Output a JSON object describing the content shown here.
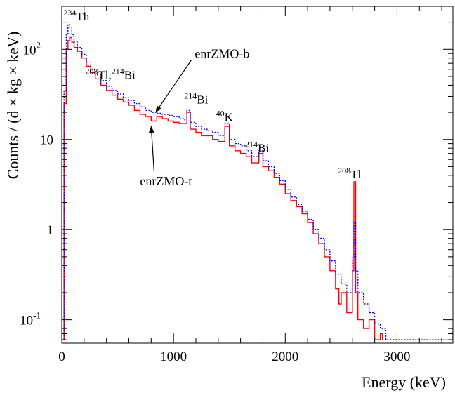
{
  "chart_data": {
    "type": "line",
    "title": "",
    "xlabel": "Energy (keV)",
    "ylabel": "Counts / (d × kg × keV)",
    "xlim": [
      0,
      3500
    ],
    "ylim": [
      0.055,
      300
    ],
    "y_scale": "log",
    "grid": false,
    "x_ticks": [
      {
        "value": 0,
        "label": "0"
      },
      {
        "value": 1000,
        "label": "1000"
      },
      {
        "value": 2000,
        "label": "2000"
      },
      {
        "value": 3000,
        "label": "3000"
      }
    ],
    "y_ticks": [
      {
        "value": 0.1,
        "label": "10",
        "exp": "-1"
      },
      {
        "value": 1,
        "label": "1",
        "exp": ""
      },
      {
        "value": 10,
        "label": "10",
        "exp": ""
      },
      {
        "value": 100,
        "label": "10",
        "exp": "2"
      }
    ],
    "series": [
      {
        "name": "enrZMO-t",
        "color": "#ff0000",
        "style": "solid",
        "x": [
          0,
          20,
          40,
          55,
          70,
          90,
          110,
          140,
          180,
          220,
          260,
          300,
          350,
          400,
          450,
          500,
          550,
          600,
          650,
          700,
          750,
          800,
          850,
          900,
          950,
          1000,
          1050,
          1100,
          1120,
          1150,
          1200,
          1250,
          1300,
          1350,
          1400,
          1460,
          1500,
          1550,
          1600,
          1650,
          1700,
          1764,
          1800,
          1850,
          1900,
          1950,
          2000,
          2050,
          2100,
          2150,
          2200,
          2250,
          2300,
          2350,
          2400,
          2450,
          2480,
          2500,
          2550,
          2600,
          2614,
          2630,
          2650,
          2700,
          2750,
          2800,
          2850,
          2870
        ],
        "values": [
          0.06,
          25,
          100,
          125,
          135,
          120,
          105,
          95,
          80,
          65,
          55,
          47,
          40,
          35,
          31,
          28,
          26,
          24,
          21,
          19,
          18,
          16,
          18,
          17,
          16,
          15.5,
          15,
          15,
          20,
          13,
          12,
          11,
          11,
          10,
          9.5,
          14,
          8.5,
          7.5,
          7,
          6.5,
          5.5,
          7,
          5,
          4.5,
          3.8,
          3.2,
          2.5,
          2.1,
          1.8,
          1.5,
          1.2,
          0.9,
          0.7,
          0.5,
          0.35,
          0.22,
          0.15,
          0.2,
          0.12,
          0.35,
          3.4,
          0.2,
          0.1,
          0.08,
          0.1,
          0.06,
          0.07,
          0.06
        ]
      },
      {
        "name": "enrZMO-b",
        "color": "#0000ff",
        "style": "dotted",
        "x": [
          0,
          20,
          40,
          55,
          70,
          90,
          110,
          140,
          180,
          220,
          260,
          300,
          350,
          400,
          450,
          500,
          550,
          600,
          650,
          700,
          750,
          800,
          850,
          900,
          950,
          1000,
          1050,
          1100,
          1120,
          1150,
          1200,
          1250,
          1300,
          1350,
          1400,
          1460,
          1500,
          1550,
          1600,
          1650,
          1700,
          1764,
          1800,
          1850,
          1900,
          1950,
          2000,
          2050,
          2100,
          2150,
          2200,
          2250,
          2300,
          2350,
          2400,
          2450,
          2500,
          2550,
          2600,
          2614,
          2630,
          2650,
          2700,
          2750,
          2800,
          2850,
          2900,
          3450,
          3500
        ],
        "values": [
          0.06,
          35,
          150,
          190,
          175,
          145,
          120,
          105,
          88,
          72,
          60,
          52,
          45,
          39,
          35,
          32,
          29,
          27,
          25,
          23,
          21,
          20,
          19.5,
          19,
          18.5,
          18,
          17,
          16.5,
          21,
          15.5,
          14,
          13,
          12.5,
          12,
          11,
          15,
          10,
          9,
          8.5,
          7.5,
          6.5,
          7.5,
          5.8,
          5,
          4.2,
          3.5,
          2.8,
          2.3,
          1.9,
          1.6,
          1.3,
          1.0,
          0.8,
          0.6,
          0.45,
          0.32,
          0.25,
          0.2,
          0.5,
          1.2,
          0.35,
          0.2,
          0.15,
          0.12,
          0.09,
          0.08,
          0.06,
          0.06,
          0.09
        ]
      }
    ],
    "annotations": [
      {
        "text": "Th",
        "sup": "234",
        "x": 15,
        "y": 210
      },
      {
        "text": "Tl,",
        "sup": "208",
        "text2": "Bi",
        "sup2": "214",
        "x": 210,
        "y": 47
      },
      {
        "text": "Bi",
        "sup": "214",
        "x": 1095,
        "y": 25
      },
      {
        "text": "K",
        "sup": "40",
        "x": 1380,
        "y": 16
      },
      {
        "text": "Bi",
        "sup": "214",
        "x": 1640,
        "y": 7.3
      },
      {
        "text": "Tl",
        "sup": "208",
        "x": 2470,
        "y": 3.7
      }
    ],
    "series_labels": [
      {
        "text": "enrZMO-b",
        "color": "#0000ff",
        "x": 1190,
        "y": 80,
        "arrow_to": [
          840,
          20
        ]
      },
      {
        "text": "enrZMO-t",
        "color": "#ff0000",
        "x": 700,
        "y": 3.1,
        "arrow_to": [
          800,
          14
        ]
      }
    ]
  }
}
